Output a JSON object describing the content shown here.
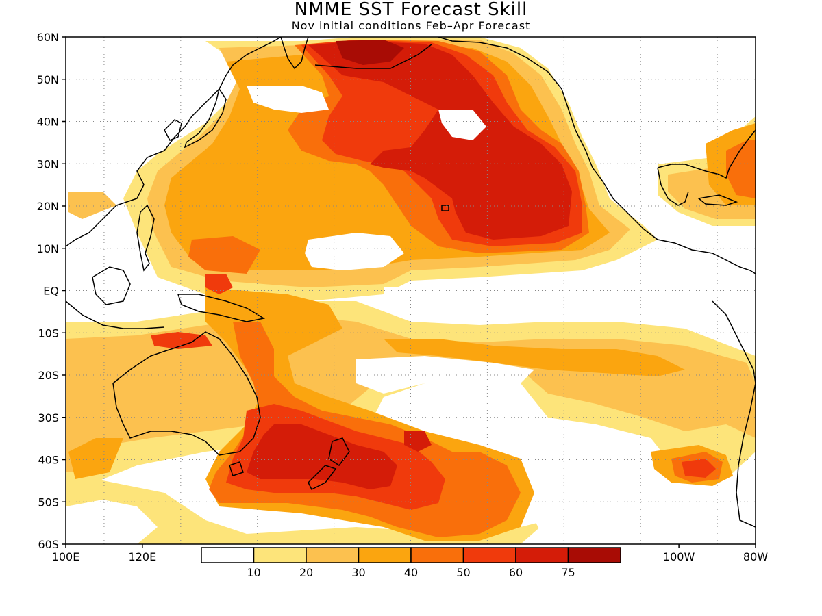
{
  "title": "NMME SST Forecast Skill",
  "subtitle": "Nov initial conditions   Feb–Apr Forecast",
  "map": {
    "lon_range": [
      100,
      280
    ],
    "lat_range": [
      -60,
      60
    ],
    "lat_ticks": [
      {
        "lat": 60,
        "label": "60N"
      },
      {
        "lat": 50,
        "label": "50N"
      },
      {
        "lat": 40,
        "label": "40N"
      },
      {
        "lat": 30,
        "label": "30N"
      },
      {
        "lat": 20,
        "label": "20N"
      },
      {
        "lat": 10,
        "label": "10N"
      },
      {
        "lat": 0,
        "label": "EQ"
      },
      {
        "lat": -10,
        "label": "10S"
      },
      {
        "lat": -20,
        "label": "20S"
      },
      {
        "lat": -30,
        "label": "30S"
      },
      {
        "lat": -40,
        "label": "40S"
      },
      {
        "lat": -50,
        "label": "50S"
      },
      {
        "lat": -60,
        "label": "60S"
      }
    ],
    "lon_ticks": [
      {
        "lon": 100,
        "label": "100E"
      },
      {
        "lon": 120,
        "label": "120E"
      },
      {
        "lon": 260,
        "label": "100W"
      },
      {
        "lon": 280,
        "label": "80W"
      }
    ],
    "grid": "dotted",
    "colors": [
      "#ffffff",
      "#fde47a",
      "#fcc14f",
      "#fba50f",
      "#f96f0b",
      "#f03a0c",
      "#d41c08",
      "#a80c05"
    ]
  },
  "legend": {
    "levels": [
      10,
      20,
      30,
      40,
      50,
      60,
      75
    ],
    "labels": [
      "10",
      "20",
      "30",
      "40",
      "50",
      "60",
      "75"
    ]
  }
}
